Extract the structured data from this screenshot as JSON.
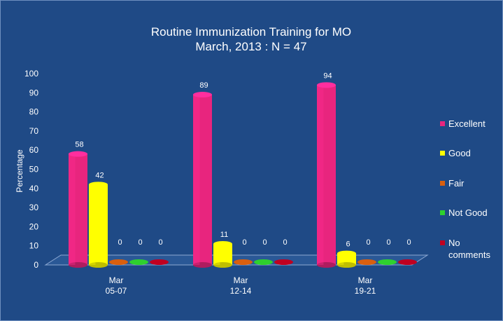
{
  "chart_data": {
    "type": "bar",
    "title": "Routine Immunization Training for MO",
    "subtitle": "March, 2013 : N = 47",
    "ylabel": "Percentage",
    "xlabel": "",
    "ylim": [
      0,
      100
    ],
    "yticks": [
      0,
      10,
      20,
      30,
      40,
      50,
      60,
      70,
      80,
      90,
      100
    ],
    "grid": false,
    "legend_position": "right",
    "categories": [
      {
        "line1": "Mar",
        "line2": "05-07"
      },
      {
        "line1": "Mar",
        "line2": "12-14"
      },
      {
        "line1": "Mar",
        "line2": "19-21"
      }
    ],
    "series": [
      {
        "name": "Excellent",
        "color": "#e8257e",
        "values": [
          58,
          89,
          94
        ]
      },
      {
        "name": "Good",
        "color": "#ffff00",
        "values": [
          42,
          11,
          6
        ]
      },
      {
        "name": "Fair",
        "color": "#d95f0e",
        "values": [
          0,
          0,
          0
        ]
      },
      {
        "name": "Not Good",
        "color": "#2ed12e",
        "values": [
          0,
          0,
          0
        ]
      },
      {
        "name": "No comments",
        "color": "#c00020",
        "values": [
          0,
          0,
          0
        ]
      }
    ]
  }
}
